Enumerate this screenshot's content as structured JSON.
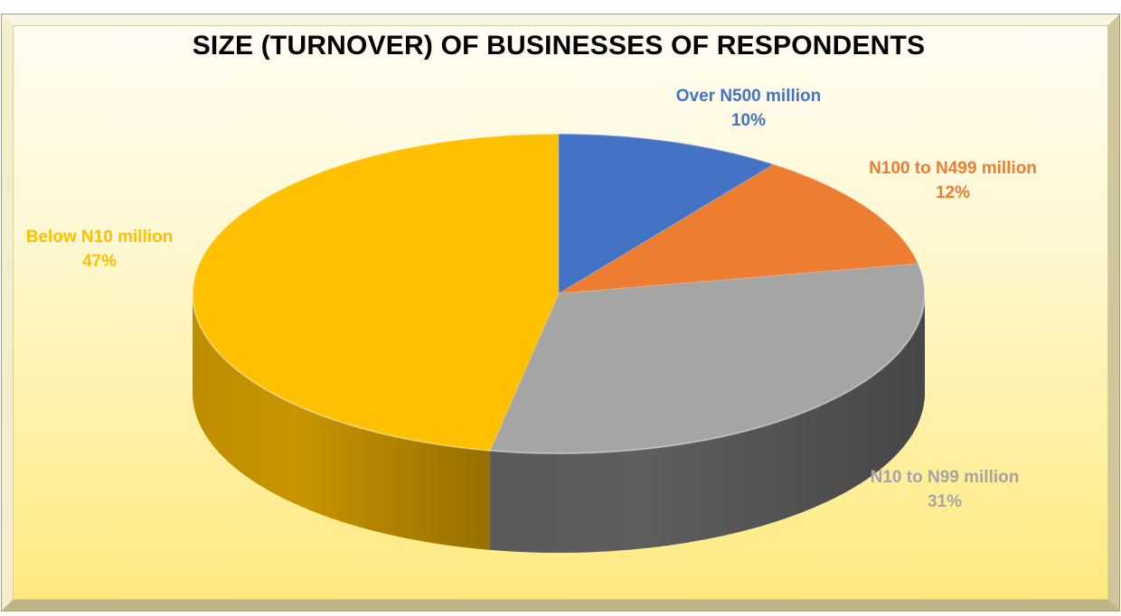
{
  "chart_data": {
    "type": "pie",
    "title": "SIZE (TURNOVER) OF BUSINESSES OF RESPONDENTS",
    "slices": [
      {
        "label": "Over N500 million",
        "percent_label": "10%",
        "value": 10,
        "color": "#4472c4",
        "side_color": "#2f5597"
      },
      {
        "label": "N100 to N499 million",
        "percent_label": "12%",
        "value": 12,
        "color": "#ed7d31",
        "side_color": "#b4581c"
      },
      {
        "label": "N10 to N99 million",
        "percent_label": "31%",
        "value": 31,
        "color": "#a5a5a5",
        "side_color": "#5e5e5e"
      },
      {
        "label": "Below N10 million",
        "percent_label": "47%",
        "value": 47,
        "color": "#ffc000",
        "side_color": "#c89400"
      }
    ],
    "label_colors": [
      "#4472c4",
      "#ed7d31",
      "#a5a5a5",
      "#ffc000"
    ],
    "style": "3d-pie",
    "legend": "none"
  }
}
